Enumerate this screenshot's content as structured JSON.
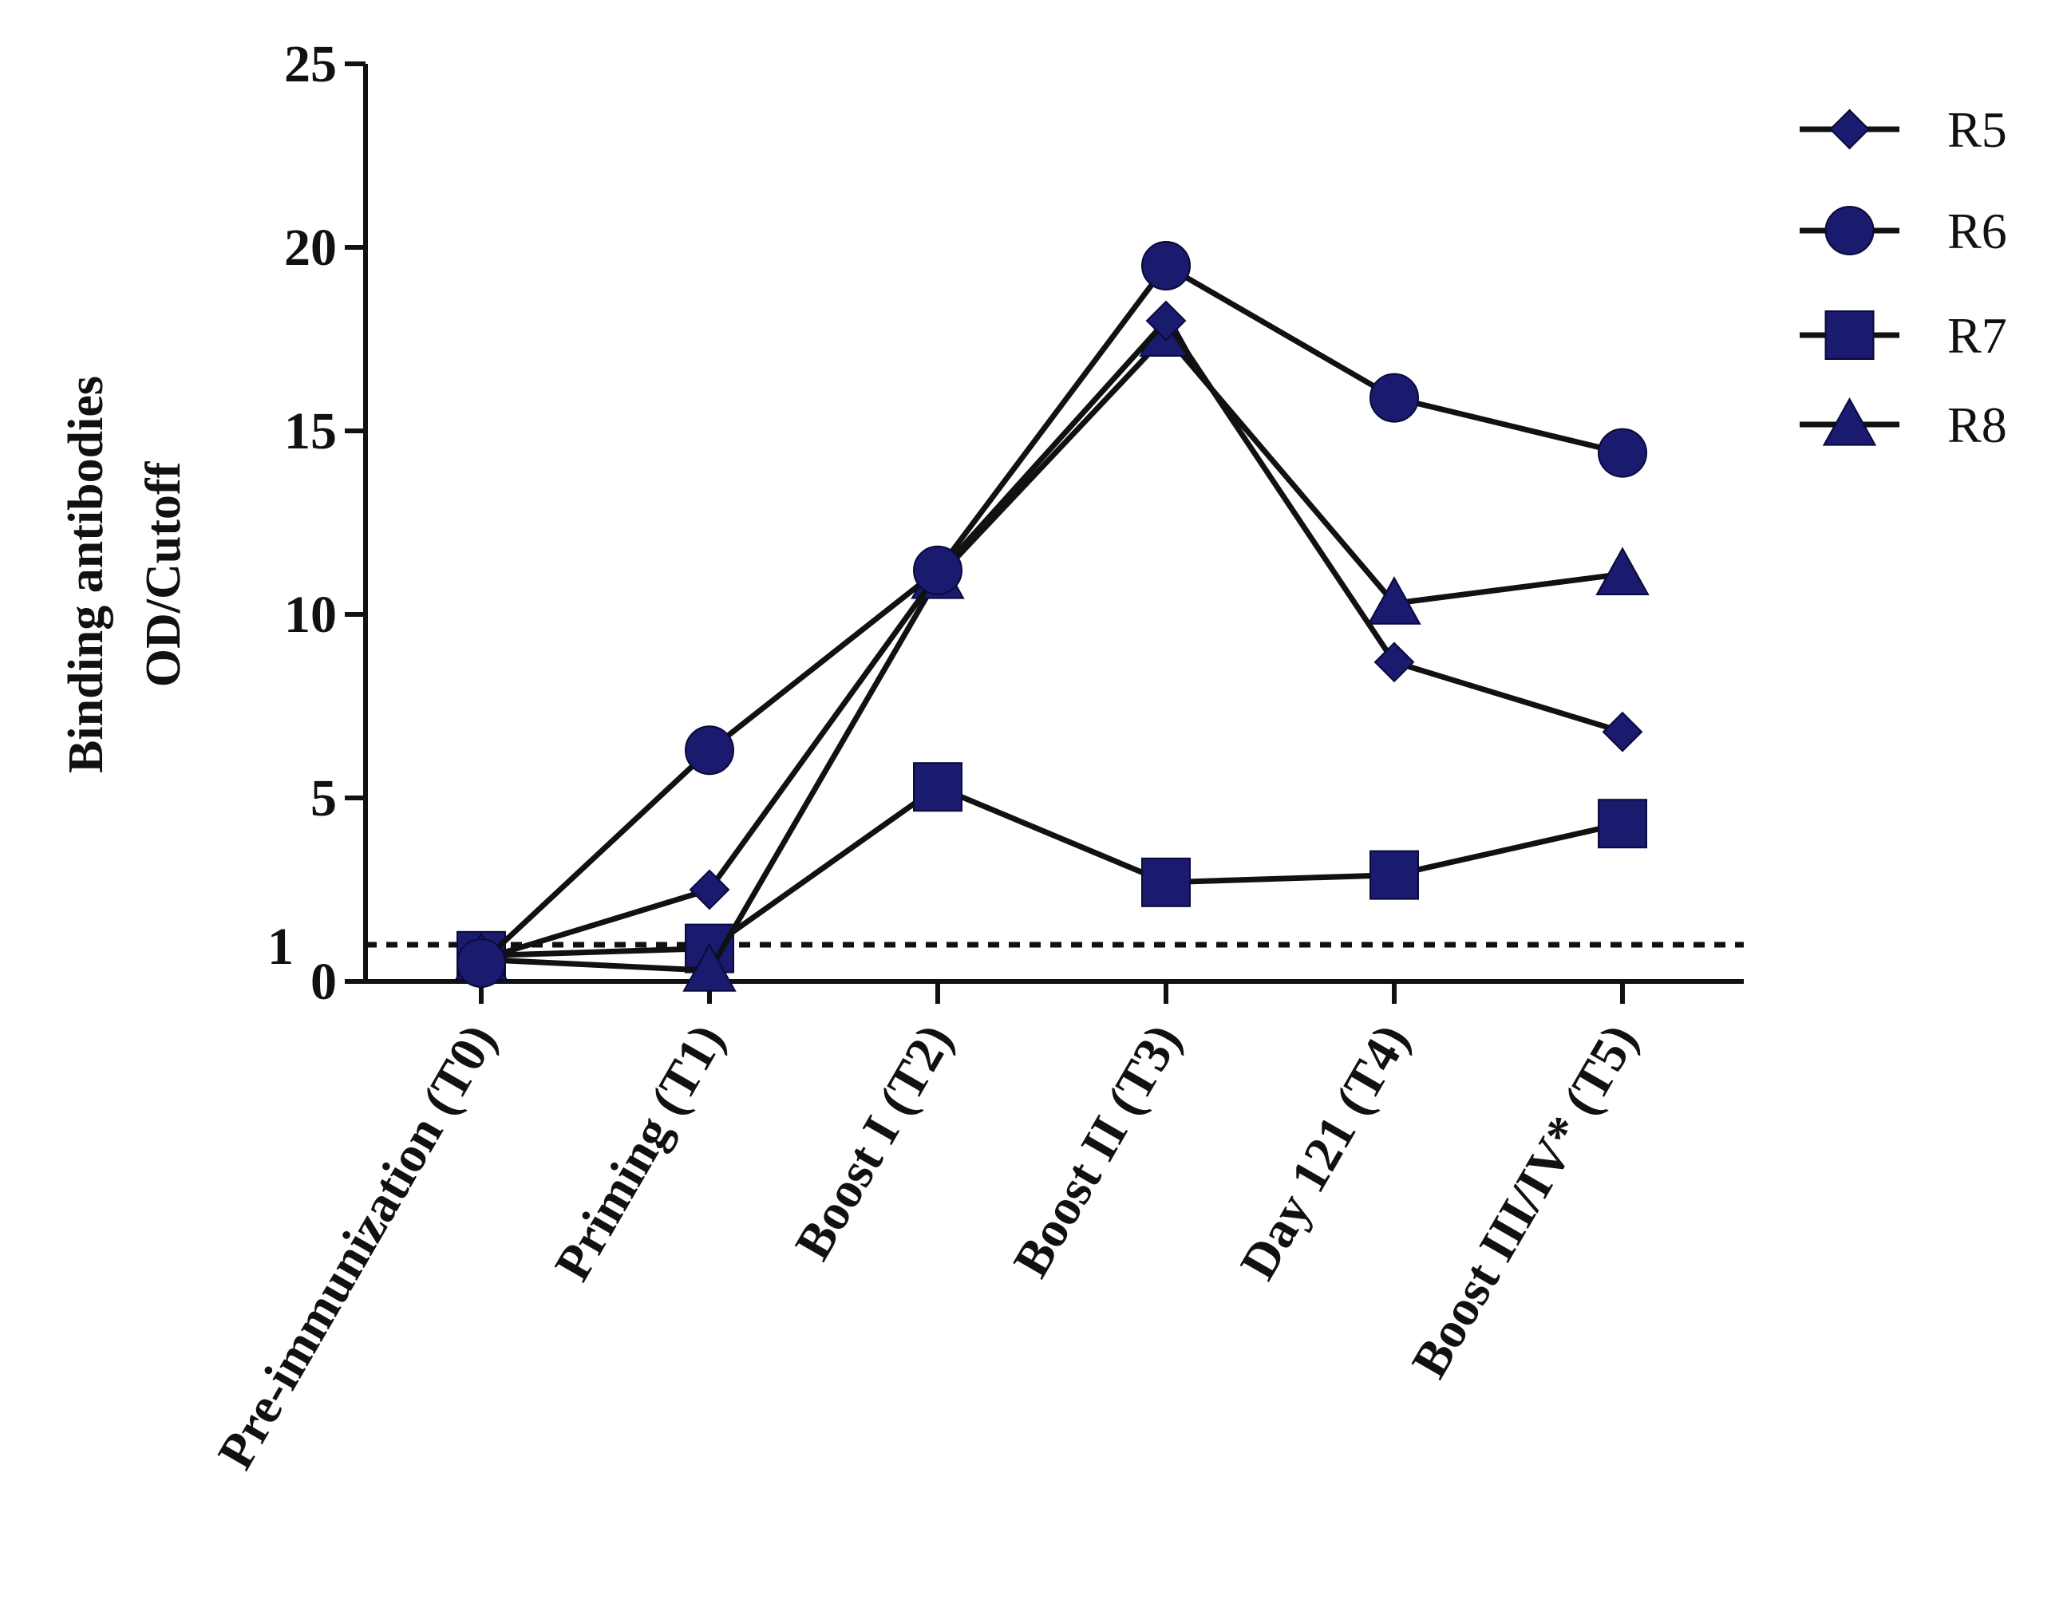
{
  "chart_data": {
    "type": "line",
    "title": "",
    "xlabel": "",
    "ylabel_lines": [
      "Binding antibodies",
      "OD/Cutoff"
    ],
    "categories": [
      "Pre-immunization (T0)",
      "Priming (T1)",
      "Boost I (T2)",
      "Boost II (T3)",
      "Day 121 (T4)",
      "Boost III/IV* (T5)"
    ],
    "ylim": [
      0,
      25
    ],
    "yticks": [
      0,
      5,
      10,
      15,
      20,
      25
    ],
    "ytick_labels": [
      "0",
      "5",
      "10",
      "15",
      "20",
      "25"
    ],
    "reference_line": {
      "value": 1,
      "label": "1",
      "style": "dotted"
    },
    "series": [
      {
        "name": "R5",
        "marker": "diamond",
        "values": [
          0.6,
          2.5,
          11.1,
          18.0,
          8.7,
          6.8
        ]
      },
      {
        "name": "R6",
        "marker": "circle",
        "values": [
          0.5,
          6.3,
          11.2,
          19.5,
          15.9,
          14.4
        ]
      },
      {
        "name": "R7",
        "marker": "square",
        "values": [
          0.7,
          0.9,
          5.3,
          2.7,
          2.9,
          4.3
        ]
      },
      {
        "name": "R8",
        "marker": "triangle",
        "values": [
          0.6,
          0.3,
          11.0,
          17.6,
          10.3,
          11.1
        ]
      }
    ],
    "legend_position": "top-right",
    "colors": {
      "marker": "#1a1a6e",
      "line": "#111111"
    }
  }
}
